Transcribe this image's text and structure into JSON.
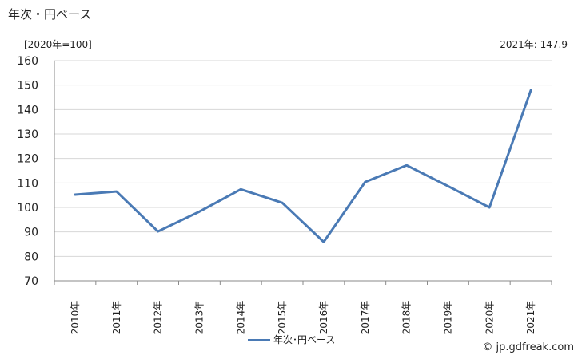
{
  "header": {
    "title": "年次・円ベース",
    "unit_label": "[2020年=100]",
    "latest_note": "2021年: 147.9"
  },
  "legend": {
    "label": "年次･円ベース",
    "color": "#4a7ab5"
  },
  "source": {
    "text": "© jp.gdfreak.com"
  },
  "chart_data": {
    "type": "line",
    "title": "年次・円ベース",
    "xlabel": "",
    "ylabel": "",
    "x": [
      "2010年",
      "2011年",
      "2012年",
      "2013年",
      "2014年",
      "2015年",
      "2016年",
      "2017年",
      "2018年",
      "2019年",
      "2020年",
      "2021年"
    ],
    "series": [
      {
        "name": "年次･円ベース",
        "values": [
          105.2,
          106.5,
          90.2,
          98.3,
          107.4,
          101.9,
          85.9,
          110.4,
          117.2,
          108.7,
          100.0,
          147.9
        ]
      }
    ],
    "ylim": [
      70,
      160
    ],
    "yticks": [
      70,
      80,
      90,
      100,
      110,
      120,
      130,
      140,
      150,
      160
    ],
    "grid": true,
    "legend_position": "bottom-center"
  }
}
